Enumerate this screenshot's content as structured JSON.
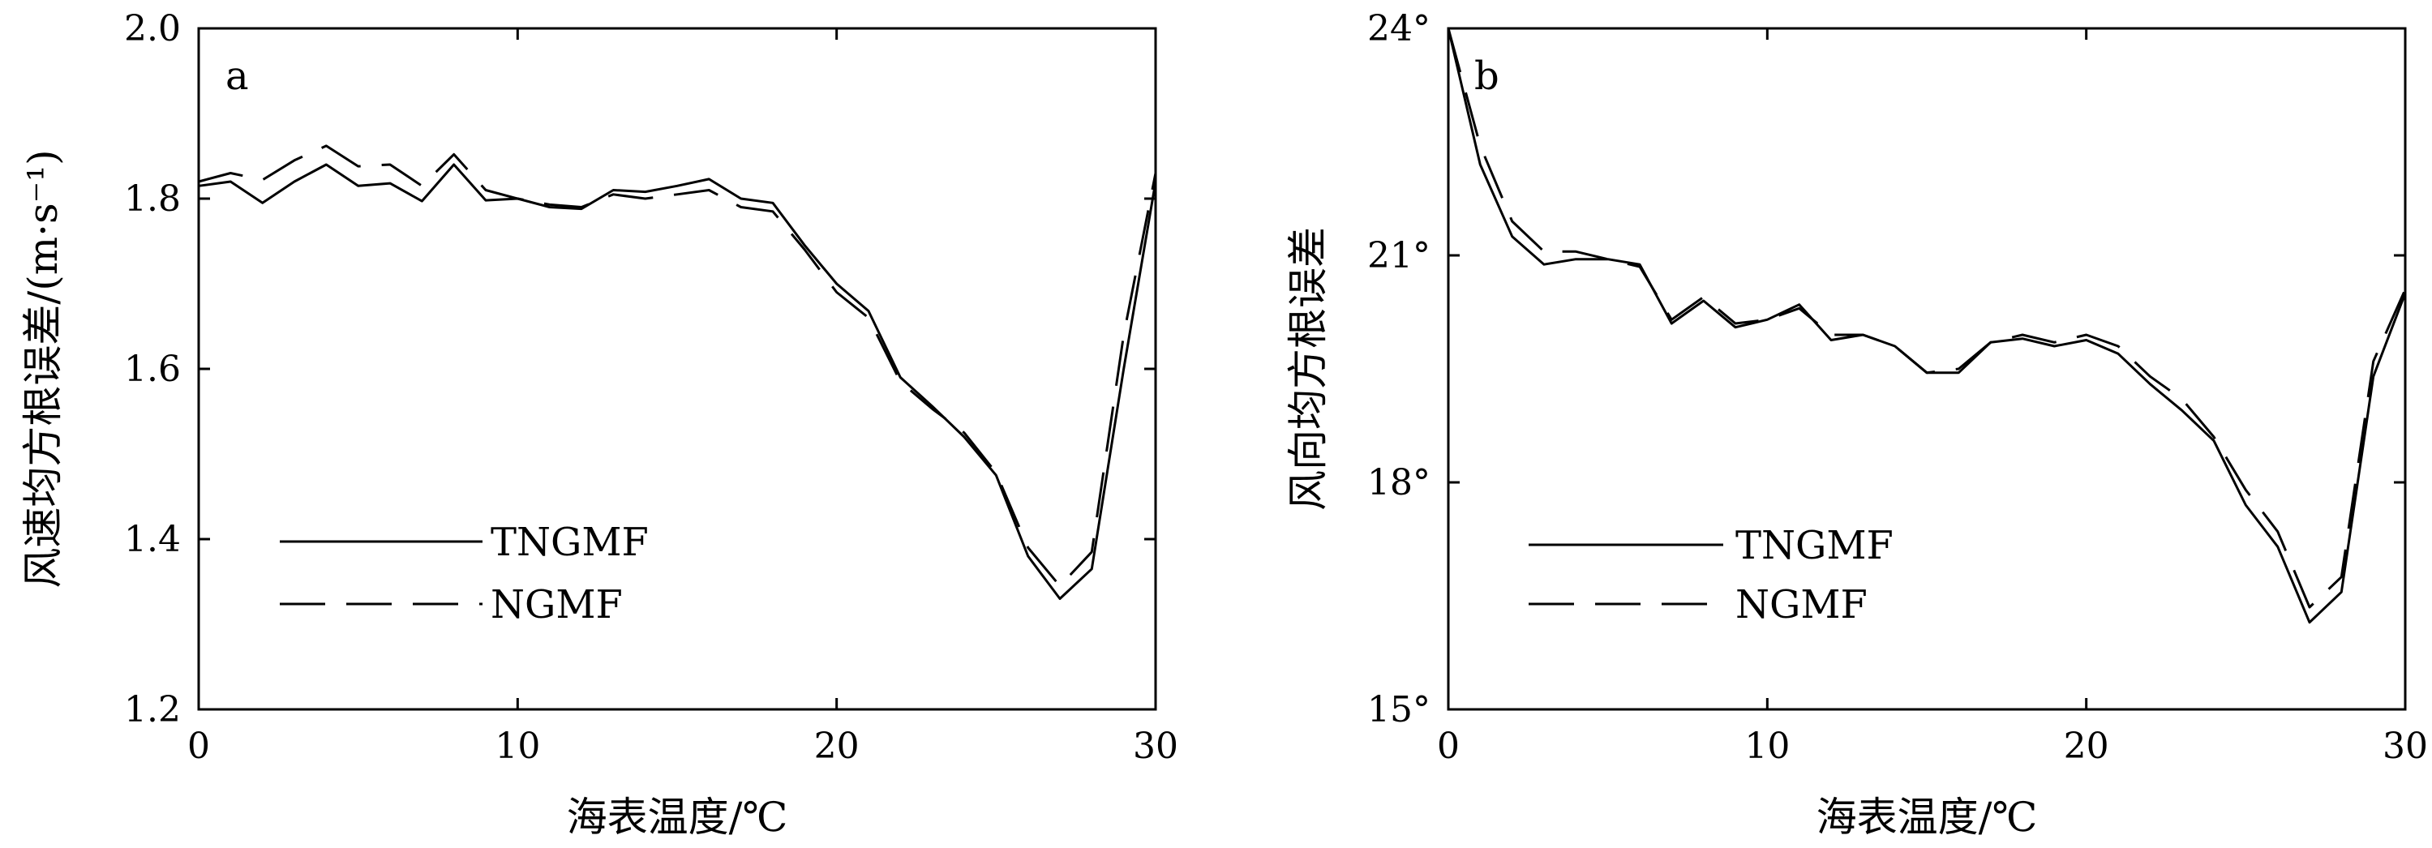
{
  "chart_data": [
    {
      "type": "line",
      "panel_label": "a",
      "xlabel": "海表温度/℃",
      "ylabel": "风速均方根误差/(m·s⁻¹)",
      "xlim": [
        0,
        30
      ],
      "ylim": [
        1.2,
        2.0
      ],
      "xticks": [
        0,
        10,
        20,
        30
      ],
      "yticks": [
        1.2,
        1.4,
        1.6,
        1.8,
        2.0
      ],
      "xtick_labels": [
        "0",
        "10",
        "20",
        "30"
      ],
      "ytick_labels": [
        "1.2",
        "1.4",
        "1.6",
        "1.8",
        "2.0"
      ],
      "legend_position": "lower-left",
      "x": [
        0,
        1,
        2,
        3,
        4,
        5,
        6,
        7,
        8,
        9,
        10,
        11,
        12,
        13,
        14,
        15,
        16,
        17,
        18,
        19,
        20,
        21,
        22,
        23,
        24,
        25,
        26,
        27,
        28,
        29,
        30
      ],
      "series": [
        {
          "name": "TNGMF",
          "style": "solid",
          "values": [
            1.815,
            1.82,
            1.795,
            1.82,
            1.84,
            1.815,
            1.818,
            1.797,
            1.84,
            1.798,
            1.8,
            1.79,
            1.788,
            1.81,
            1.808,
            1.815,
            1.823,
            1.8,
            1.795,
            1.745,
            1.7,
            1.668,
            1.59,
            1.556,
            1.52,
            1.475,
            1.38,
            1.33,
            1.365,
            1.6,
            1.82
          ]
        },
        {
          "name": "NGMF",
          "style": "dashed",
          "values": [
            1.82,
            1.83,
            1.822,
            1.845,
            1.862,
            1.838,
            1.84,
            1.815,
            1.852,
            1.81,
            1.8,
            1.793,
            1.79,
            1.805,
            1.8,
            1.805,
            1.81,
            1.79,
            1.785,
            1.74,
            1.69,
            1.66,
            1.585,
            1.553,
            1.525,
            1.478,
            1.39,
            1.345,
            1.385,
            1.64,
            1.83
          ]
        }
      ]
    },
    {
      "type": "line",
      "panel_label": "b",
      "xlabel": "海表温度/℃",
      "ylabel": "风向均方根误差",
      "xlim": [
        0,
        30
      ],
      "ylim": [
        15,
        24
      ],
      "xticks": [
        0,
        10,
        20,
        30
      ],
      "yticks": [
        15,
        18,
        21,
        24
      ],
      "xtick_labels": [
        "0",
        "10",
        "20",
        "30"
      ],
      "ytick_labels": [
        "15°",
        "18°",
        "21°",
        "24°"
      ],
      "legend_position": "lower-left",
      "x": [
        0,
        1,
        2,
        3,
        4,
        5,
        6,
        7,
        8,
        9,
        10,
        11,
        12,
        13,
        14,
        15,
        16,
        17,
        18,
        19,
        20,
        21,
        22,
        23,
        24,
        25,
        26,
        27,
        28,
        29,
        30
      ],
      "series": [
        {
          "name": "TNGMF",
          "style": "solid",
          "values": [
            24.0,
            22.2,
            21.25,
            20.88,
            20.95,
            20.95,
            20.88,
            20.1,
            20.4,
            20.05,
            20.15,
            20.35,
            19.88,
            19.95,
            19.8,
            19.45,
            19.45,
            19.85,
            19.9,
            19.8,
            19.88,
            19.7,
            19.3,
            18.95,
            18.55,
            17.7,
            17.15,
            16.15,
            16.55,
            19.4,
            20.5
          ]
        },
        {
          "name": "NGMF",
          "style": "dashed",
          "values": [
            24.0,
            22.45,
            21.45,
            21.05,
            21.05,
            20.95,
            20.85,
            20.15,
            20.45,
            20.1,
            20.15,
            20.3,
            19.95,
            19.95,
            19.8,
            19.45,
            19.5,
            19.85,
            19.95,
            19.85,
            19.95,
            19.8,
            19.4,
            19.1,
            18.6,
            17.9,
            17.35,
            16.35,
            16.75,
            19.6,
            20.55
          ]
        }
      ]
    }
  ]
}
